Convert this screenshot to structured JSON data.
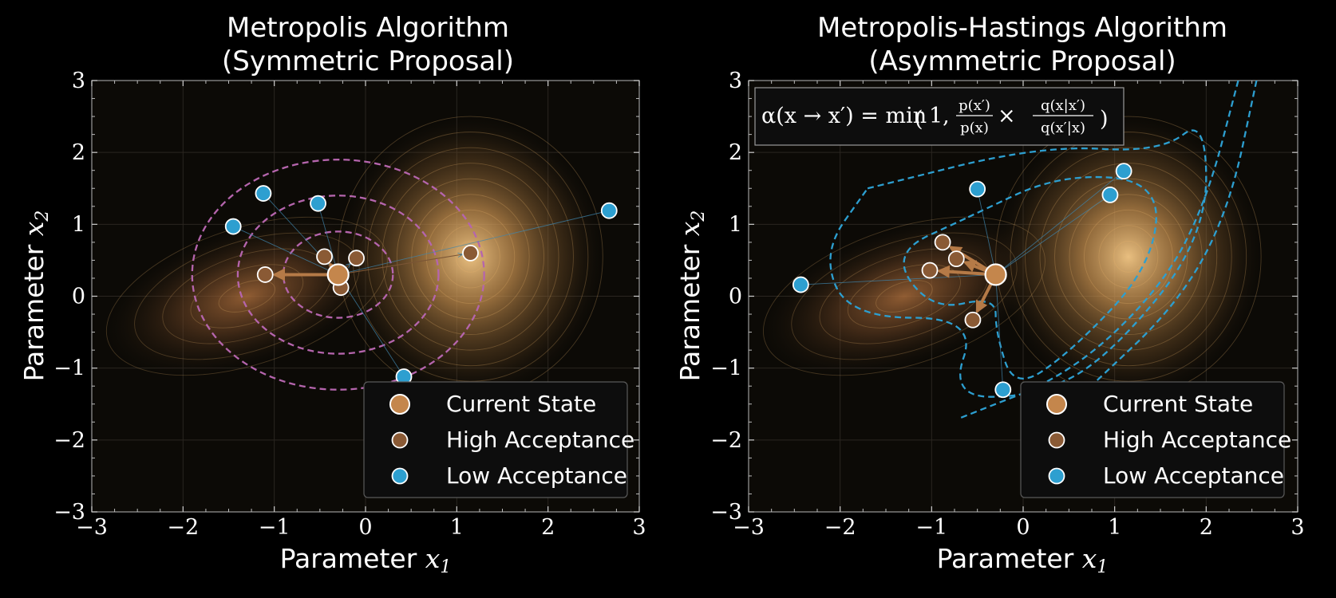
{
  "colors": {
    "current": "#c4864c",
    "high": "#8a5a35",
    "low": "#2d9fd0",
    "proposal_sym": "#b565ad",
    "proposal_asym": "#2d9fd0",
    "density": "#e8b46a",
    "frame": "#9a9a9a"
  },
  "chart_data": [
    {
      "type": "scatter",
      "title": "Metropolis Algorithm",
      "subtitle": "(Symmetric Proposal)",
      "xlabel": "Parameter",
      "xlabel_var": "x",
      "xlabel_sub": "1",
      "ylabel": "Parameter",
      "ylabel_var": "x",
      "ylabel_sub": "2",
      "xlim": [
        -3,
        3
      ],
      "ylim": [
        -3,
        3
      ],
      "xticks": [
        "−3",
        "−2",
        "−1",
        "0",
        "1",
        "2",
        "3"
      ],
      "yticks": [
        "−3",
        "−2",
        "−1",
        "0",
        "1",
        "2",
        "3"
      ],
      "legend": [
        "Current State",
        "High Acceptance",
        "Low Acceptance"
      ],
      "legend_loc": "lower right",
      "current": {
        "x": -0.3,
        "y": 0.3
      },
      "high": [
        {
          "x": 1.15,
          "y": 0.6
        },
        {
          "x": -1.1,
          "y": 0.3
        },
        {
          "x": -0.45,
          "y": 0.55
        },
        {
          "x": -0.1,
          "y": 0.53
        },
        {
          "x": -0.27,
          "y": 0.12
        }
      ],
      "low": [
        {
          "x": -1.45,
          "y": 0.97
        },
        {
          "x": -1.12,
          "y": 1.43
        },
        {
          "x": -0.52,
          "y": 1.29
        },
        {
          "x": 2.67,
          "y": 1.19
        },
        {
          "x": 0.42,
          "y": -1.12
        }
      ],
      "strong_arrows": [
        1,
        2
      ],
      "proposal": {
        "kind": "symmetric",
        "radii": [
          0.6,
          1.1,
          1.6
        ]
      }
    },
    {
      "type": "scatter",
      "title": "Metropolis-Hastings Algorithm",
      "subtitle": "(Asymmetric Proposal)",
      "xlabel": "Parameter",
      "xlabel_var": "x",
      "xlabel_sub": "1",
      "ylabel": "Parameter",
      "ylabel_var": "x",
      "ylabel_sub": "2",
      "xlim": [
        -3,
        3
      ],
      "ylim": [
        -3,
        3
      ],
      "xticks": [
        "−3",
        "−2",
        "−1",
        "0",
        "1",
        "2",
        "3"
      ],
      "yticks": [
        "−3",
        "−2",
        "−1",
        "0",
        "1",
        "2",
        "3"
      ],
      "legend": [
        "Current State",
        "High Acceptance",
        "Low Acceptance"
      ],
      "legend_loc": "lower right",
      "annotation": {
        "lhs": "α(x → x′) = min",
        "one": "1,",
        "f1_num": "p(x′)",
        "f1_den": "p(x)",
        "times": "×",
        "f2_num": "q(x|x′)",
        "f2_den": "q(x′|x)"
      },
      "current": {
        "x": -0.3,
        "y": 0.3
      },
      "high": [
        {
          "x": -0.88,
          "y": 0.75
        },
        {
          "x": -0.73,
          "y": 0.52
        },
        {
          "x": -1.02,
          "y": 0.36
        },
        {
          "x": -0.55,
          "y": -0.33
        }
      ],
      "low": [
        {
          "x": -0.5,
          "y": 1.49
        },
        {
          "x": 1.1,
          "y": 1.74
        },
        {
          "x": 0.95,
          "y": 1.41
        },
        {
          "x": -2.43,
          "y": 0.16
        },
        {
          "x": -0.22,
          "y": -1.3
        }
      ],
      "strong_arrows": [
        0,
        1,
        2,
        3
      ],
      "proposal": {
        "kind": "asymmetric"
      }
    }
  ]
}
